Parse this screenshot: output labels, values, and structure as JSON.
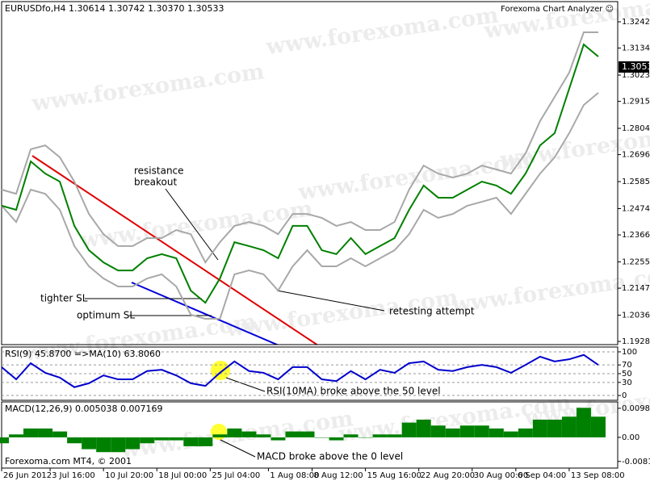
{
  "watermark": "www.forexoma.com",
  "chart_data": [
    {
      "type": "line",
      "title": "Forexoma Chart Analyzer ☺",
      "subtitle": "EURUSDfo,H4  1.30614 1.30742 1.30370 1.30533",
      "last_price_label": "1.30533",
      "annotations": [
        "resistance",
        "breakout",
        "tighter SL",
        "optimum SL",
        "retesting attempt"
      ],
      "x": [
        0,
        3,
        6,
        9,
        12,
        15,
        18,
        21,
        24,
        27,
        30,
        33,
        36,
        39,
        42,
        45,
        48,
        51,
        54,
        57,
        60,
        63,
        66,
        69,
        72,
        75,
        78,
        81,
        84,
        87,
        90,
        93,
        96,
        99,
        102,
        105,
        108,
        111,
        114,
        117,
        120,
        123
      ],
      "xlim": [
        0,
        127
      ],
      "ylim": [
        1.1915,
        1.3325
      ],
      "yticks": [
        {
          "value": 1.3242,
          "label": "1.32420"
        },
        {
          "value": 1.3134,
          "label": "1.31340"
        },
        {
          "value": 1.3023,
          "label": "1.30230"
        },
        {
          "value": 1.2915,
          "label": "1.29150"
        },
        {
          "value": 1.2804,
          "label": "1.28040"
        },
        {
          "value": 1.2696,
          "label": "1.26960"
        },
        {
          "value": 1.2585,
          "label": "1.25850"
        },
        {
          "value": 1.2474,
          "label": "1.24740"
        },
        {
          "value": 1.2366,
          "label": "1.23660"
        },
        {
          "value": 1.2255,
          "label": "1.22550"
        },
        {
          "value": 1.2147,
          "label": "1.21470"
        },
        {
          "value": 1.2036,
          "label": "1.20360"
        },
        {
          "value": 1.1928,
          "label": "1.19280"
        }
      ],
      "grid": false,
      "series": [
        {
          "color": "#a8a8a8",
          "values": [
            1.2552,
            1.2535,
            1.2718,
            1.2734,
            1.2685,
            1.2585,
            1.2452,
            1.2369,
            1.232,
            1.232,
            1.2353,
            1.2353,
            1.2386,
            1.2369,
            1.2253,
            1.2336,
            1.2403,
            1.2419,
            1.2403,
            1.2369,
            1.2452,
            1.2452,
            1.2436,
            1.2403,
            1.2419,
            1.2386,
            1.2386,
            1.2419,
            1.2552,
            1.2651,
            1.2618,
            1.2602,
            1.2618,
            1.2651,
            1.2635,
            1.2618,
            1.2701,
            1.2834,
            1.2933,
            1.3033,
            1.3199,
            1.3199
          ]
        },
        {
          "color": "#a8a8a8",
          "values": [
            1.2486,
            1.2419,
            1.2552,
            1.2535,
            1.2469,
            1.232,
            1.2237,
            1.2187,
            1.2154,
            1.2154,
            1.2187,
            1.2204,
            1.2154,
            1.2038,
            1.2021,
            1.2021,
            1.2204,
            1.222,
            1.2204,
            1.2137,
            1.2237,
            1.2303,
            1.2237,
            1.2237,
            1.227,
            1.2237,
            1.227,
            1.2303,
            1.2369,
            1.2469,
            1.2436,
            1.2452,
            1.2486,
            1.2502,
            1.2519,
            1.2452,
            1.2535,
            1.2618,
            1.2685,
            1.2784,
            1.29,
            1.295
          ]
        },
        {
          "color": "#008000",
          "values": [
            1.2486,
            1.2469,
            1.2668,
            1.2618,
            1.2585,
            1.2403,
            1.2303,
            1.2253,
            1.222,
            1.222,
            1.227,
            1.2287,
            1.227,
            1.2137,
            1.2087,
            1.2187,
            1.2336,
            1.232,
            1.2303,
            1.227,
            1.2403,
            1.2403,
            1.2303,
            1.2287,
            1.2353,
            1.2287,
            1.232,
            1.2353,
            1.2469,
            1.2569,
            1.2519,
            1.2519,
            1.2552,
            1.2585,
            1.2569,
            1.2535,
            1.2618,
            1.2734,
            1.2784,
            1.2967,
            1.3149,
            1.3099
          ]
        }
      ]
    },
    {
      "type": "line",
      "subtitle": "RSI(9) 45.8700  =>MA(10) 63.8060",
      "annotations": [
        "RSI(10MA) broke above the 50 level"
      ],
      "x": [
        0,
        3,
        6,
        9,
        12,
        15,
        18,
        21,
        24,
        27,
        30,
        33,
        36,
        39,
        42,
        45,
        48,
        51,
        54,
        57,
        60,
        63,
        66,
        69,
        72,
        75,
        78,
        81,
        84,
        87,
        90,
        93,
        96,
        99,
        102,
        105,
        108,
        111,
        114,
        117,
        120,
        123
      ],
      "xlim": [
        0,
        127
      ],
      "ylim": [
        -11,
        111
      ],
      "yticks": [
        100,
        70,
        50,
        30,
        0
      ],
      "grid": true,
      "series": [
        {
          "color": "#0000cc",
          "values": [
            65,
            37,
            74,
            52,
            41,
            19,
            28,
            46,
            37,
            37,
            56,
            59,
            46,
            28,
            22,
            52,
            78,
            56,
            52,
            37,
            65,
            65,
            37,
            33,
            56,
            37,
            59,
            52,
            74,
            78,
            59,
            56,
            65,
            70,
            65,
            52,
            70,
            89,
            78,
            83,
            93,
            70
          ]
        }
      ]
    },
    {
      "type": "bar",
      "subtitle": "MACD(12,26,9) 0.005038 0.007169",
      "annotations": [
        "MACD broke above the 0 level"
      ],
      "footer": "Forexoma.com MT4, © 2001",
      "x": [
        0,
        3,
        6,
        9,
        12,
        15,
        18,
        21,
        24,
        27,
        30,
        33,
        36,
        39,
        42,
        45,
        48,
        51,
        54,
        57,
        60,
        63,
        66,
        69,
        72,
        75,
        78,
        81,
        84,
        87,
        90,
        93,
        96,
        99,
        102,
        105,
        108,
        111,
        114,
        117,
        120,
        123
      ],
      "xlim": [
        0,
        127
      ],
      "ylim": [
        -0.0104,
        0.012
      ],
      "yticks": [
        0.009835,
        {
          "value": 0,
          "label": "0.00"
        },
        -0.00815
      ],
      "grid": false,
      "xticks": [
        {
          "value": 0,
          "label": "26 Jun 2012"
        },
        {
          "value": 10,
          "label": "3 Jul 16:00"
        },
        {
          "value": 21,
          "label": "10 Jul 20:00"
        },
        {
          "value": 32,
          "label": "18 Jul 00:00"
        },
        {
          "value": 43,
          "label": "25 Jul 04:00"
        },
        {
          "value": 55,
          "label": "1 Aug 08:00"
        },
        {
          "value": 64,
          "label": "8 Aug 12:00"
        },
        {
          "value": 75,
          "label": "15 Aug 16:00"
        },
        {
          "value": 86,
          "label": "22 Aug 20:00"
        },
        {
          "value": 97,
          "label": "30 Aug 00:00"
        },
        {
          "value": 106,
          "label": "6 Sep 04:00"
        },
        {
          "value": 117,
          "label": "13 Sep 08:00"
        }
      ],
      "series": [
        {
          "color": "#008000",
          "values": [
            -0.002,
            0.001,
            0.003,
            0.003,
            0.002,
            -0.002,
            -0.004,
            -0.005,
            -0.005,
            -0.004,
            -0.002,
            -0.001,
            -0.001,
            -0.003,
            -0.003,
            0.001,
            0.003,
            0.002,
            0.001,
            -0.001,
            0.002,
            0.002,
            0,
            -0.001,
            0.001,
            0,
            0.001,
            0.001,
            0.005,
            0.006,
            0.004,
            0.003,
            0.004,
            0.004,
            0.003,
            0.002,
            0.003,
            0.006,
            0.006,
            0.007,
            0.01,
            0.007
          ]
        }
      ]
    }
  ]
}
